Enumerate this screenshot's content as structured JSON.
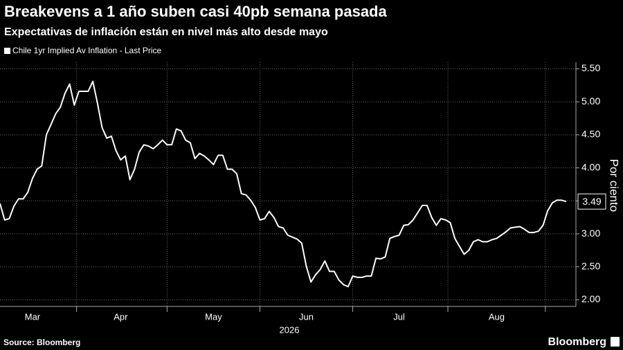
{
  "chart_data": {
    "type": "line",
    "title": "Breakevens a 1 año suben casi 40pb semana pasada",
    "subtitle": "Expectativas de inflación están en nivel más alto desde mayo",
    "ylabel": "Por ciento",
    "xlabel": "2026",
    "source": "Source: Bloomberg",
    "brand": "Bloomberg",
    "end_label": "3.49",
    "categories": [
      null,
      null,
      null,
      null,
      null,
      null,
      null,
      "Mar",
      null,
      null,
      null,
      null,
      null,
      null,
      null,
      null,
      null,
      null,
      null,
      null,
      null,
      null,
      null,
      null,
      null,
      null,
      "Apr",
      null,
      null,
      null,
      null,
      null,
      null,
      null,
      null,
      null,
      null,
      null,
      null,
      null,
      null,
      null,
      null,
      null,
      null,
      null,
      "May",
      null,
      null,
      null,
      null,
      null,
      null,
      null,
      null,
      null,
      null,
      null,
      null,
      null,
      null,
      null,
      null,
      null,
      null,
      null,
      "Jun",
      null,
      null,
      null,
      null,
      null,
      null,
      null,
      null,
      null,
      null,
      null,
      null,
      null,
      null,
      null,
      null,
      null,
      null,
      null,
      "Jul",
      null,
      null,
      null,
      null,
      null,
      null,
      null,
      null,
      null,
      null,
      null,
      null,
      null,
      null,
      null,
      null,
      null,
      null,
      null,
      null,
      "Aug",
      null,
      null,
      null,
      null,
      null,
      null,
      null,
      null,
      null,
      null,
      null,
      null,
      null,
      null,
      null
    ],
    "series": [
      {
        "name": "Chile 1yr Implied Av Inflation - Last Price",
        "color": "#ffffff",
        "values": [
          3.46,
          3.21,
          3.23,
          3.42,
          3.53,
          3.53,
          3.63,
          3.84,
          3.98,
          4.03,
          4.5,
          4.66,
          4.82,
          4.92,
          5.13,
          5.27,
          4.95,
          5.16,
          5.16,
          5.16,
          5.31,
          4.98,
          4.61,
          4.45,
          4.48,
          4.26,
          4.12,
          4.18,
          3.82,
          3.98,
          4.24,
          4.35,
          4.33,
          4.29,
          4.35,
          4.42,
          4.35,
          4.35,
          4.59,
          4.56,
          4.42,
          4.38,
          4.14,
          4.22,
          4.18,
          4.12,
          4.05,
          4.19,
          4.19,
          3.98,
          3.98,
          3.91,
          3.61,
          3.59,
          3.51,
          3.4,
          3.21,
          3.23,
          3.34,
          3.25,
          3.11,
          3.09,
          2.98,
          2.95,
          2.92,
          2.86,
          2.51,
          2.27,
          2.38,
          2.46,
          2.59,
          2.43,
          2.43,
          2.3,
          2.23,
          2.2,
          2.36,
          2.34,
          2.34,
          2.36,
          2.36,
          2.63,
          2.62,
          2.65,
          2.93,
          2.96,
          2.98,
          3.13,
          3.14,
          3.21,
          3.32,
          3.43,
          3.43,
          3.25,
          3.13,
          3.23,
          3.21,
          3.17,
          2.93,
          2.81,
          2.69,
          2.75,
          2.88,
          2.91,
          2.88,
          2.88,
          2.91,
          2.93,
          2.98,
          3.03,
          3.09,
          3.1,
          3.11,
          3.07,
          3.02,
          3.02,
          3.04,
          3.13,
          3.35,
          3.47,
          3.51,
          3.51,
          3.49
        ]
      }
    ],
    "ylim": [
      1.9,
      5.6
    ],
    "yticks": [
      {
        "value": 2,
        "label": "2.00"
      },
      {
        "value": 2.5,
        "label": "2.50"
      },
      {
        "value": 3,
        "label": "3.00"
      },
      {
        "value": 3.5,
        "label": "3.50"
      },
      {
        "value": 4,
        "label": "4.00"
      },
      {
        "value": 4.5,
        "label": "4.50"
      },
      {
        "value": 5,
        "label": "5.00"
      },
      {
        "value": 5.5,
        "label": "5.50"
      }
    ],
    "grid": true
  }
}
